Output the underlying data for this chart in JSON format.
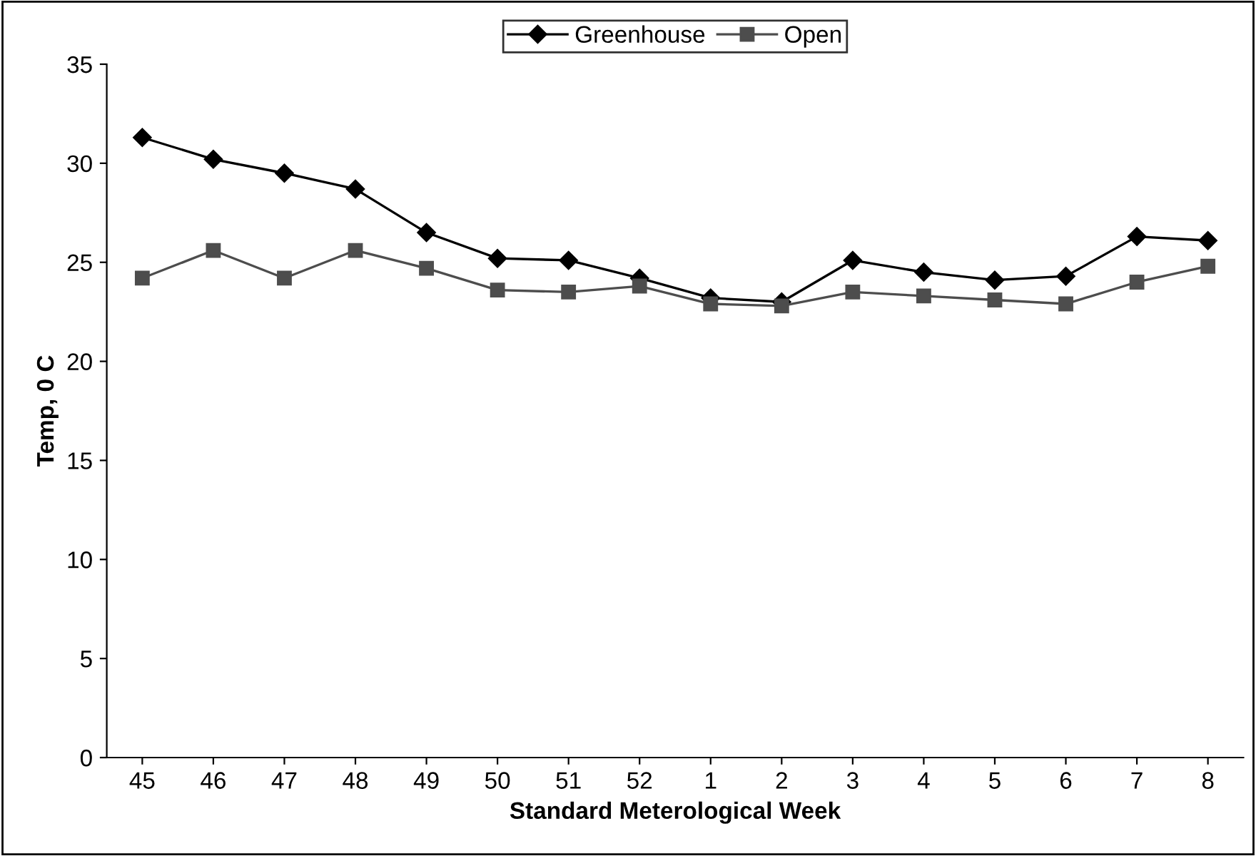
{
  "chart_data": {
    "type": "line",
    "xlabel": "Standard Meterological Week",
    "ylabel": "Temp, 0 C",
    "categories": [
      "45",
      "46",
      "47",
      "48",
      "49",
      "50",
      "51",
      "52",
      "1",
      "2",
      "3",
      "4",
      "5",
      "6",
      "7",
      "8"
    ],
    "series": [
      {
        "name": "Greenhouse",
        "color": "#000000",
        "marker": "diamond",
        "values": [
          31.3,
          30.2,
          29.5,
          28.7,
          26.5,
          25.2,
          25.1,
          24.2,
          23.2,
          23.0,
          25.1,
          24.5,
          24.1,
          24.3,
          26.3,
          26.1
        ]
      },
      {
        "name": "Open",
        "color": "#4d4d4d",
        "marker": "square",
        "values": [
          24.2,
          25.6,
          24.2,
          25.6,
          24.7,
          23.6,
          23.5,
          23.8,
          22.9,
          22.8,
          23.5,
          23.3,
          23.1,
          22.9,
          24.0,
          24.8
        ]
      }
    ],
    "ylim": [
      0,
      35
    ],
    "yticks": [
      0,
      5,
      10,
      15,
      20,
      25,
      30,
      35
    ],
    "grid": false,
    "legend": "top"
  }
}
